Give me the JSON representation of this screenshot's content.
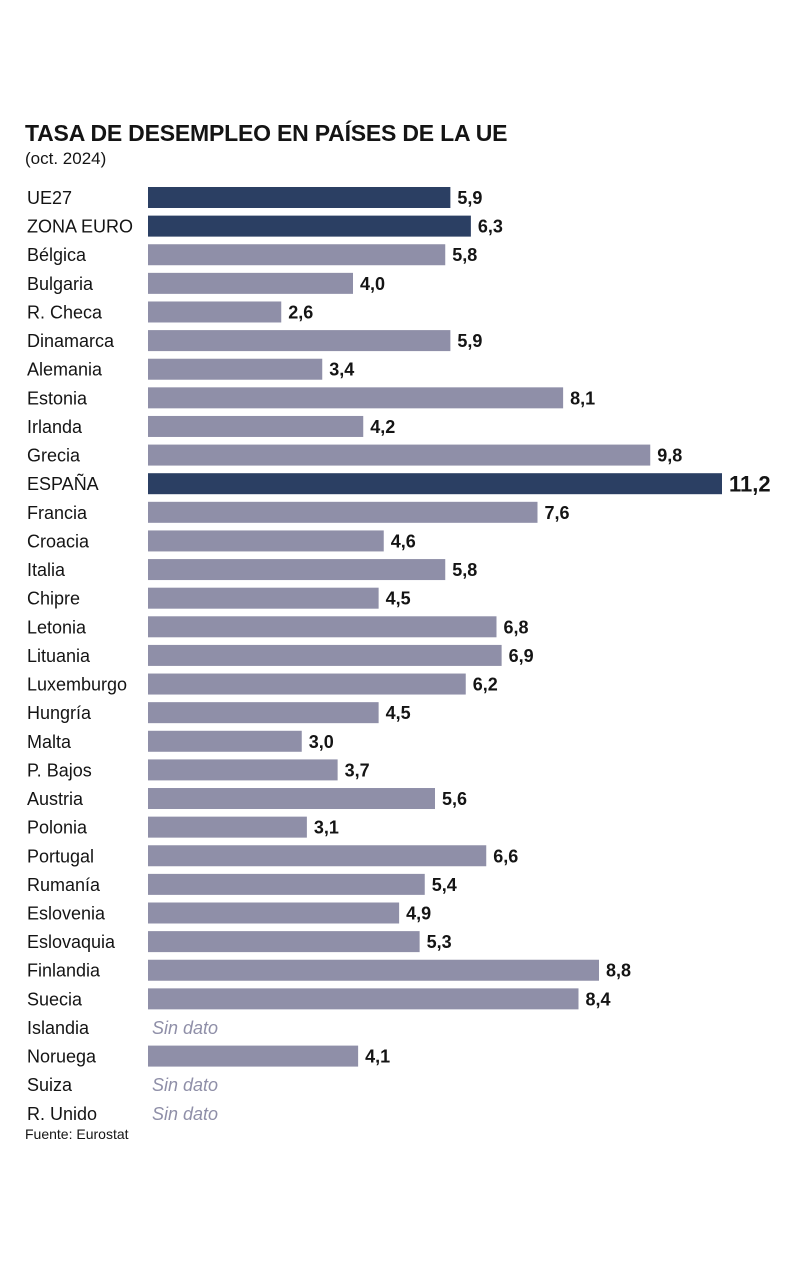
{
  "chart_data": {
    "type": "bar",
    "orientation": "horizontal",
    "title": "TASA DE DESEMPLEO EN PAÍSES DE LA UE",
    "subtitle": "(oct. 2024)",
    "source": "Fuente: Eurostat",
    "xlim": [
      0,
      11.2
    ],
    "no_data_label": "Sin dato",
    "colors": {
      "highlight": "#2b3f63",
      "normal": "#8f8fa8",
      "missing_text": "#8f8fa8",
      "text": "#141414"
    },
    "bars": [
      {
        "label": "UE27",
        "value": 5.9,
        "display": "5,9",
        "highlight": true
      },
      {
        "label": "ZONA EURO",
        "value": 6.3,
        "display": "6,3",
        "highlight": true
      },
      {
        "label": "Bélgica",
        "value": 5.8,
        "display": "5,8",
        "highlight": false
      },
      {
        "label": "Bulgaria",
        "value": 4.0,
        "display": "4,0",
        "highlight": false
      },
      {
        "label": "R. Checa",
        "value": 2.6,
        "display": "2,6",
        "highlight": false
      },
      {
        "label": "Dinamarca",
        "value": 5.9,
        "display": "5,9",
        "highlight": false
      },
      {
        "label": "Alemania",
        "value": 3.4,
        "display": "3,4",
        "highlight": false
      },
      {
        "label": "Estonia",
        "value": 8.1,
        "display": "8,1",
        "highlight": false
      },
      {
        "label": "Irlanda",
        "value": 4.2,
        "display": "4,2",
        "highlight": false
      },
      {
        "label": "Grecia",
        "value": 9.8,
        "display": "9,8",
        "highlight": false
      },
      {
        "label": "ESPAÑA",
        "value": 11.2,
        "display": "11,2",
        "highlight": true
      },
      {
        "label": "Francia",
        "value": 7.6,
        "display": "7,6",
        "highlight": false
      },
      {
        "label": "Croacia",
        "value": 4.6,
        "display": "4,6",
        "highlight": false
      },
      {
        "label": "Italia",
        "value": 5.8,
        "display": "5,8",
        "highlight": false
      },
      {
        "label": "Chipre",
        "value": 4.5,
        "display": "4,5",
        "highlight": false
      },
      {
        "label": "Letonia",
        "value": 6.8,
        "display": "6,8",
        "highlight": false
      },
      {
        "label": "Lituania",
        "value": 6.9,
        "display": "6,9",
        "highlight": false
      },
      {
        "label": "Luxemburgo",
        "value": 6.2,
        "display": "6,2",
        "highlight": false
      },
      {
        "label": "Hungría",
        "value": 4.5,
        "display": "4,5",
        "highlight": false
      },
      {
        "label": "Malta",
        "value": 3.0,
        "display": "3,0",
        "highlight": false
      },
      {
        "label": "P. Bajos",
        "value": 3.7,
        "display": "3,7",
        "highlight": false
      },
      {
        "label": "Austria",
        "value": 5.6,
        "display": "5,6",
        "highlight": false
      },
      {
        "label": "Polonia",
        "value": 3.1,
        "display": "3,1",
        "highlight": false
      },
      {
        "label": "Portugal",
        "value": 6.6,
        "display": "6,6",
        "highlight": false
      },
      {
        "label": "Rumanía",
        "value": 5.4,
        "display": "5,4",
        "highlight": false
      },
      {
        "label": "Eslovenia",
        "value": 4.9,
        "display": "4,9",
        "highlight": false
      },
      {
        "label": "Eslovaquia",
        "value": 5.3,
        "display": "5,3",
        "highlight": false
      },
      {
        "label": "Finlandia",
        "value": 8.8,
        "display": "8,8",
        "highlight": false
      },
      {
        "label": "Suecia",
        "value": 8.4,
        "display": "8,4",
        "highlight": false
      },
      {
        "label": "Islandia",
        "value": null,
        "display": null,
        "highlight": false
      },
      {
        "label": "Noruega",
        "value": 4.1,
        "display": "4,1",
        "highlight": false
      },
      {
        "label": "Suiza",
        "value": null,
        "display": null,
        "highlight": false
      },
      {
        "label": "R. Unido",
        "value": null,
        "display": null,
        "highlight": false
      }
    ]
  }
}
